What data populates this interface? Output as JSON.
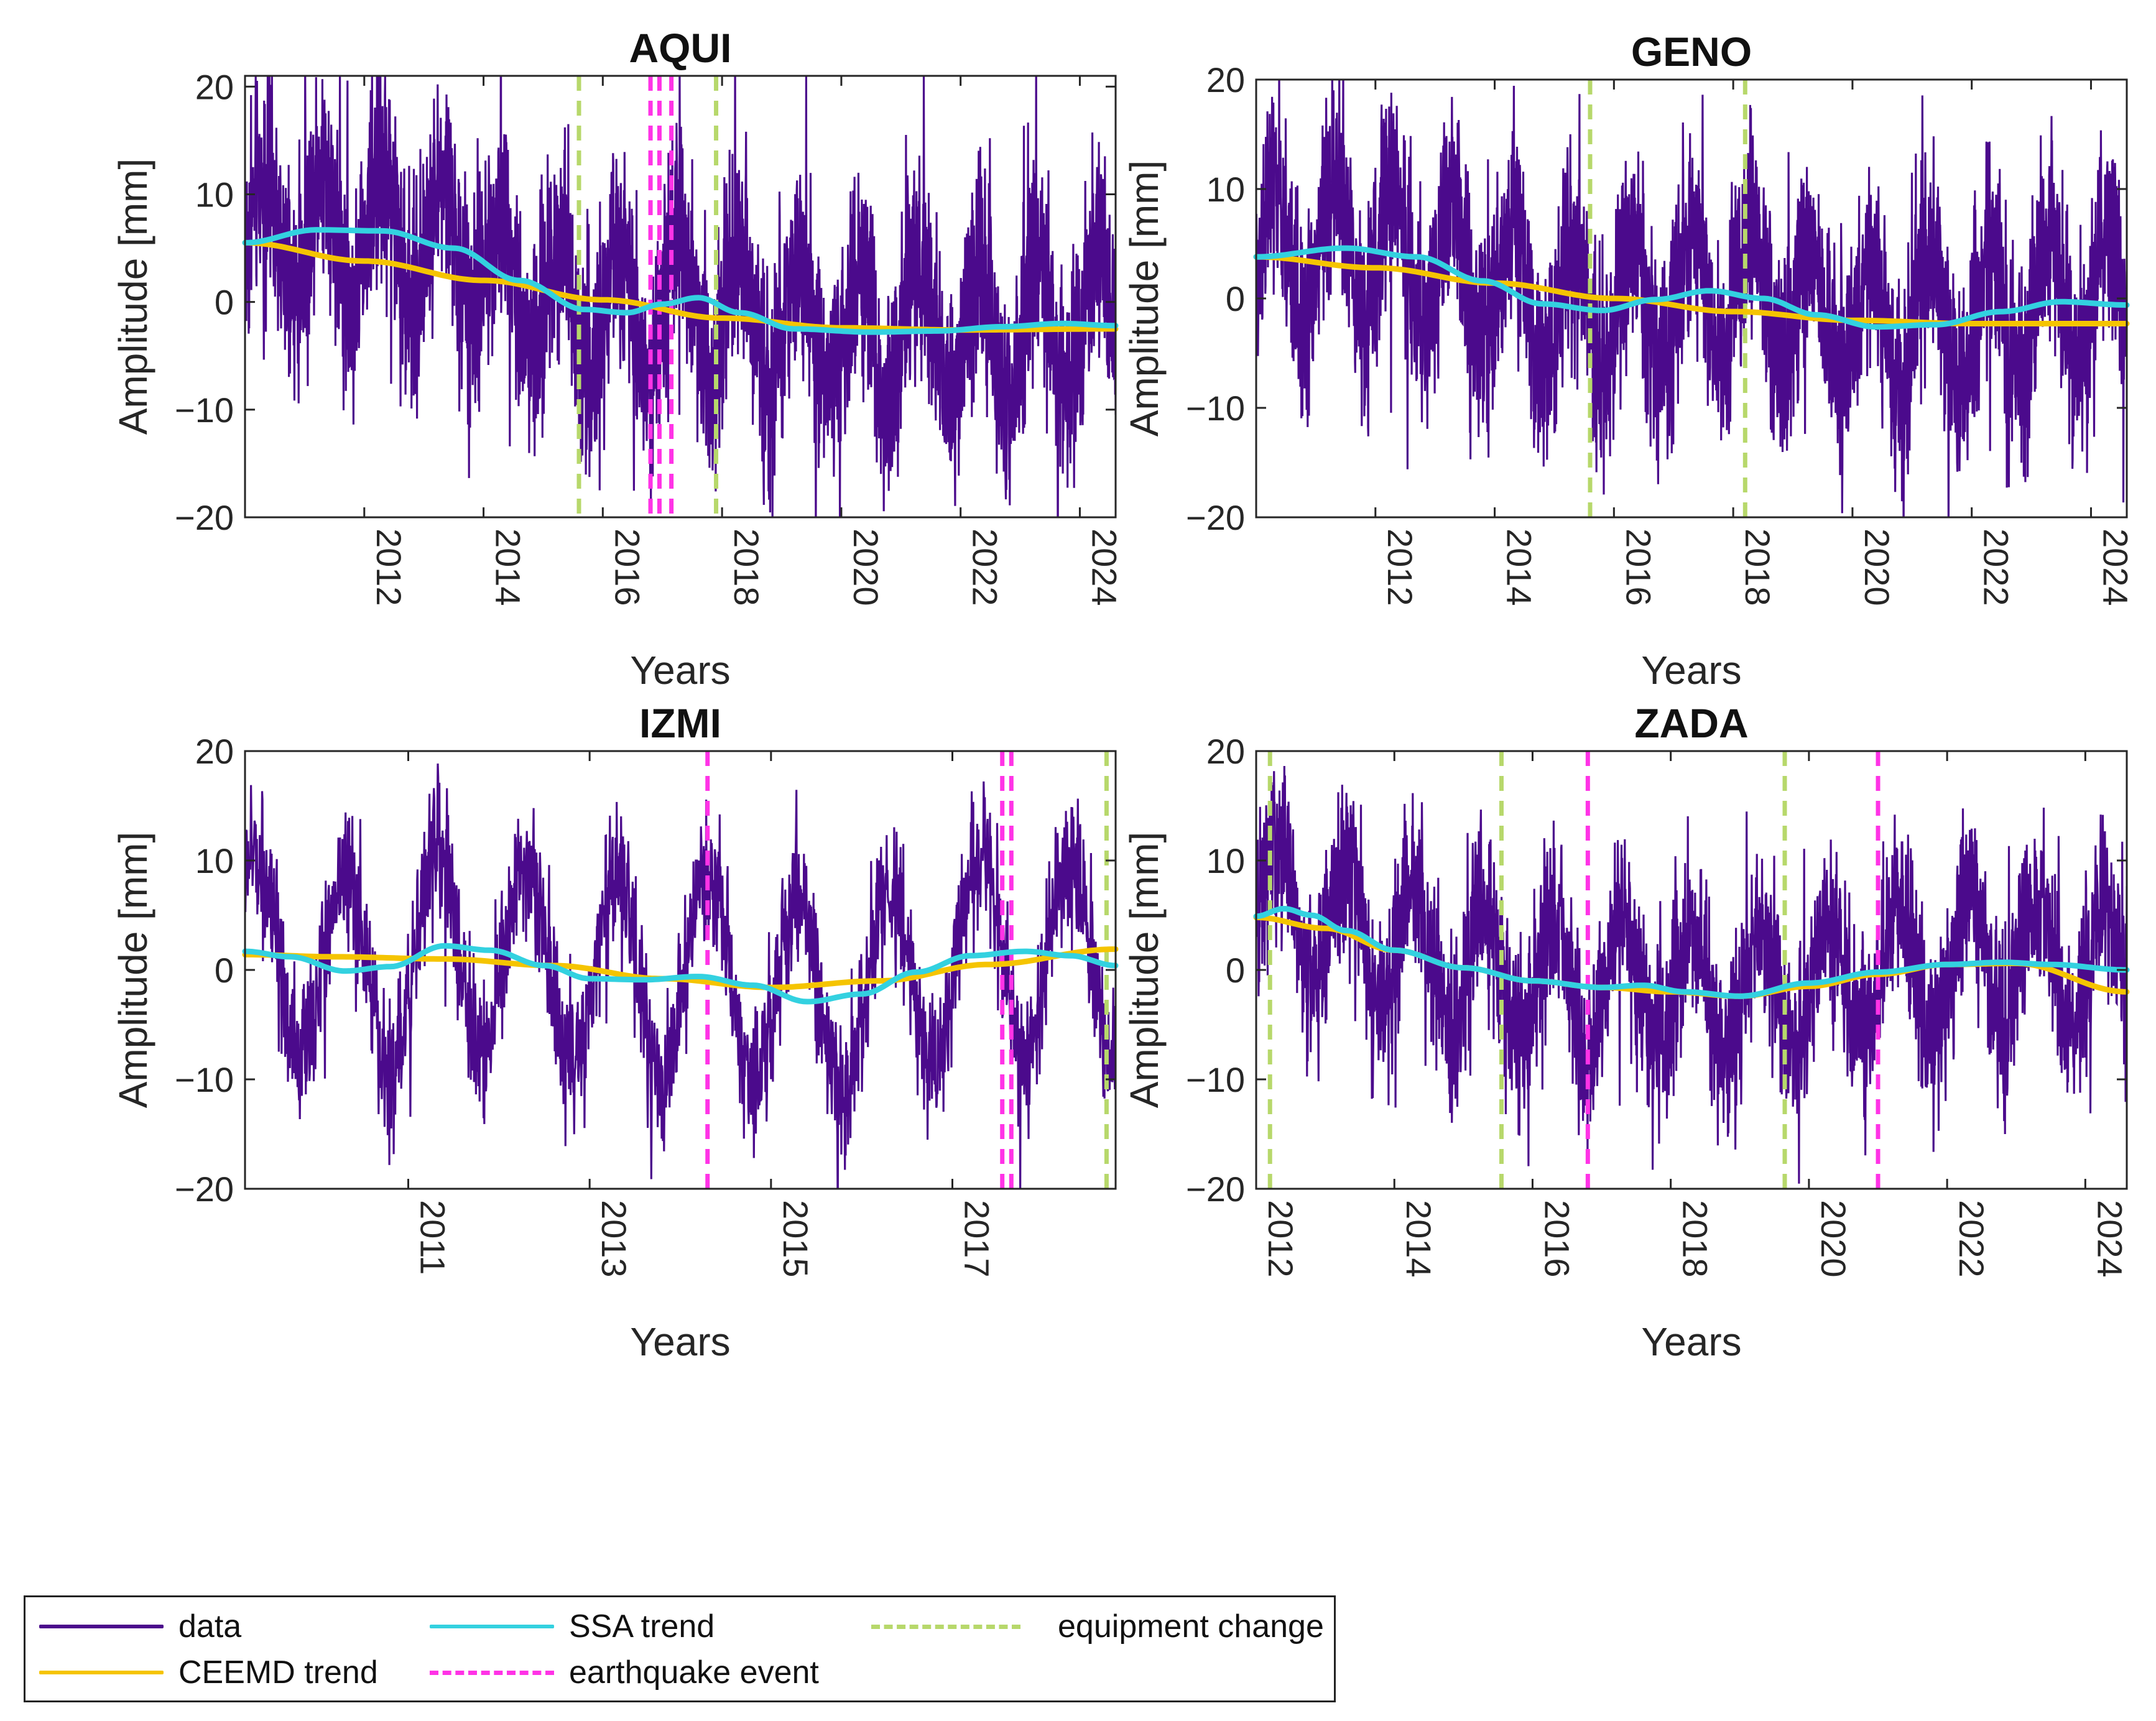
{
  "colors": {
    "data": "#4b0a8c",
    "ceemd": "#f5c400",
    "ssa": "#33d1e0",
    "earthquake": "#ff33e6",
    "equipment": "#b7d86b"
  },
  "legend": {
    "data": "data",
    "ssa": "SSA trend",
    "equipment": "equipment change",
    "ceemd": "CEEMD trend",
    "earthquake": "earthquake event"
  },
  "chart_data": [
    {
      "type": "line",
      "title": "AQUI",
      "xlabel": "Years",
      "ylabel": "Amplitude [mm]",
      "xlim": [
        2010.0,
        2024.6
      ],
      "ylim": [
        -20,
        21
      ],
      "xticks": [
        2012,
        2014,
        2016,
        2018,
        2020,
        2022,
        2024
      ],
      "yticks": [
        -20,
        -10,
        0,
        10,
        20
      ],
      "ceemd_trend": {
        "x": [
          2010.0,
          2012,
          2014,
          2016,
          2018,
          2020,
          2022,
          2024.6
        ],
        "y": [
          5.5,
          3.8,
          2.0,
          0.2,
          -1.5,
          -2.4,
          -2.6,
          -2.5
        ]
      },
      "ssa_trend": {
        "x": [
          2010.0,
          2011.2,
          2012.3,
          2013.5,
          2014.6,
          2015.7,
          2016.4,
          2017.0,
          2017.6,
          2018.3,
          2019.2,
          2020.5,
          2021.6,
          2022.7,
          2023.7,
          2024.6
        ],
        "y": [
          5.5,
          6.7,
          6.6,
          5.0,
          2.0,
          -0.7,
          -1.0,
          -0.2,
          0.4,
          -1.0,
          -2.5,
          -2.8,
          -2.7,
          -2.3,
          -2.0,
          -2.2
        ]
      },
      "data_series": {
        "seasonal_amplitude": 6,
        "noise": 7
      },
      "earthquake_events": [
        2016.8,
        2016.95,
        2017.15
      ],
      "equipment_changes": [
        2015.6,
        2017.9
      ]
    },
    {
      "type": "line",
      "title": "GENO",
      "xlabel": "Years",
      "ylabel": "Amplitude [mm]",
      "xlim": [
        2010.0,
        2024.6
      ],
      "ylim": [
        -20,
        20
      ],
      "xticks": [
        2012,
        2014,
        2016,
        2018,
        2020,
        2022,
        2024
      ],
      "yticks": [
        -20,
        -10,
        0,
        10,
        20
      ],
      "ceemd_trend": {
        "x": [
          2010.0,
          2012,
          2014,
          2016,
          2018,
          2020,
          2022,
          2024.6
        ],
        "y": [
          3.8,
          2.8,
          1.4,
          0.0,
          -1.2,
          -2.0,
          -2.3,
          -2.3
        ]
      },
      "ssa_trend": {
        "x": [
          2010.0,
          2011.5,
          2012.7,
          2013.8,
          2014.8,
          2015.8,
          2016.7,
          2017.6,
          2018.5,
          2019.4,
          2020.4,
          2021.4,
          2022.5,
          2023.5,
          2024.6
        ],
        "y": [
          3.8,
          4.6,
          3.8,
          1.6,
          -0.5,
          -1.1,
          -0.1,
          0.7,
          0.0,
          -1.5,
          -2.6,
          -2.4,
          -1.2,
          -0.3,
          -0.6
        ]
      },
      "data_series": {
        "seasonal_amplitude": 6,
        "noise": 6.5
      },
      "earthquake_events": [],
      "equipment_changes": [
        2015.6,
        2018.2
      ]
    },
    {
      "type": "line",
      "title": "IZMI",
      "xlabel": "Years",
      "ylabel": "Amplitude [mm]",
      "xlim": [
        2009.2,
        2018.8
      ],
      "ylim": [
        -20,
        20
      ],
      "xticks": [
        2011,
        2013,
        2015,
        2017
      ],
      "yticks": [
        -20,
        -10,
        0,
        10,
        20
      ],
      "ceemd_trend": {
        "x": [
          2009.2,
          2010.2,
          2011.4,
          2012.6,
          2013.8,
          2015.0,
          2016.2,
          2017.4,
          2018.8
        ],
        "y": [
          1.4,
          1.2,
          1.0,
          0.4,
          -0.8,
          -1.6,
          -1.0,
          0.5,
          1.9
        ]
      },
      "ssa_trend": {
        "x": [
          2009.2,
          2009.7,
          2010.3,
          2010.8,
          2011.4,
          2011.9,
          2012.5,
          2013.0,
          2013.6,
          2014.2,
          2014.8,
          2015.4,
          2016.0,
          2016.6,
          2017.2,
          2017.8,
          2018.3,
          2018.8
        ],
        "y": [
          1.7,
          1.2,
          -0.1,
          0.3,
          2.2,
          1.8,
          0.4,
          -0.8,
          -0.9,
          -0.6,
          -1.4,
          -2.9,
          -2.2,
          -0.2,
          1.3,
          1.7,
          1.3,
          0.4
        ]
      },
      "data_series": {
        "seasonal_amplitude": 9,
        "noise": 4.5
      },
      "earthquake_events": [
        2014.3,
        2017.55,
        2017.65
      ],
      "equipment_changes": [
        2018.7
      ]
    },
    {
      "type": "line",
      "title": "ZADA",
      "xlabel": "Years",
      "ylabel": "Amplitude [mm]",
      "xlim": [
        2012.0,
        2024.6
      ],
      "ylim": [
        -20,
        20
      ],
      "xticks": [
        2012,
        2014,
        2016,
        2018,
        2020,
        2022,
        2024
      ],
      "yticks": [
        -20,
        -10,
        0,
        10,
        20
      ],
      "ceemd_trend": {
        "x": [
          2012.0,
          2013,
          2014,
          2015,
          2016,
          2017,
          2018,
          2019,
          2020,
          2021,
          2022,
          2023,
          2024.6
        ],
        "y": [
          4.8,
          3.8,
          1.8,
          0.2,
          -1.0,
          -1.6,
          -2.0,
          -2.4,
          -1.5,
          -0.4,
          0.5,
          0.6,
          -2.0
        ]
      },
      "ssa_trend": {
        "x": [
          2012.0,
          2012.4,
          2012.8,
          2013.3,
          2014.0,
          2015.0,
          2016.0,
          2017.0,
          2017.6,
          2018.2,
          2019.0,
          2020.0,
          2021.0,
          2022.0,
          2022.8,
          2023.5,
          2024.6
        ],
        "y": [
          4.9,
          5.6,
          5.0,
          3.6,
          1.8,
          0.2,
          -1.0,
          -1.6,
          -1.4,
          -2.0,
          -2.4,
          -1.2,
          -0.2,
          0.5,
          0.7,
          0.5,
          0.0
        ]
      },
      "data_series": {
        "seasonal_amplitude": 6,
        "noise": 5.5
      },
      "earthquake_events": [
        2016.8,
        2021.0
      ],
      "equipment_changes": [
        2012.2,
        2015.55,
        2019.65
      ]
    }
  ]
}
